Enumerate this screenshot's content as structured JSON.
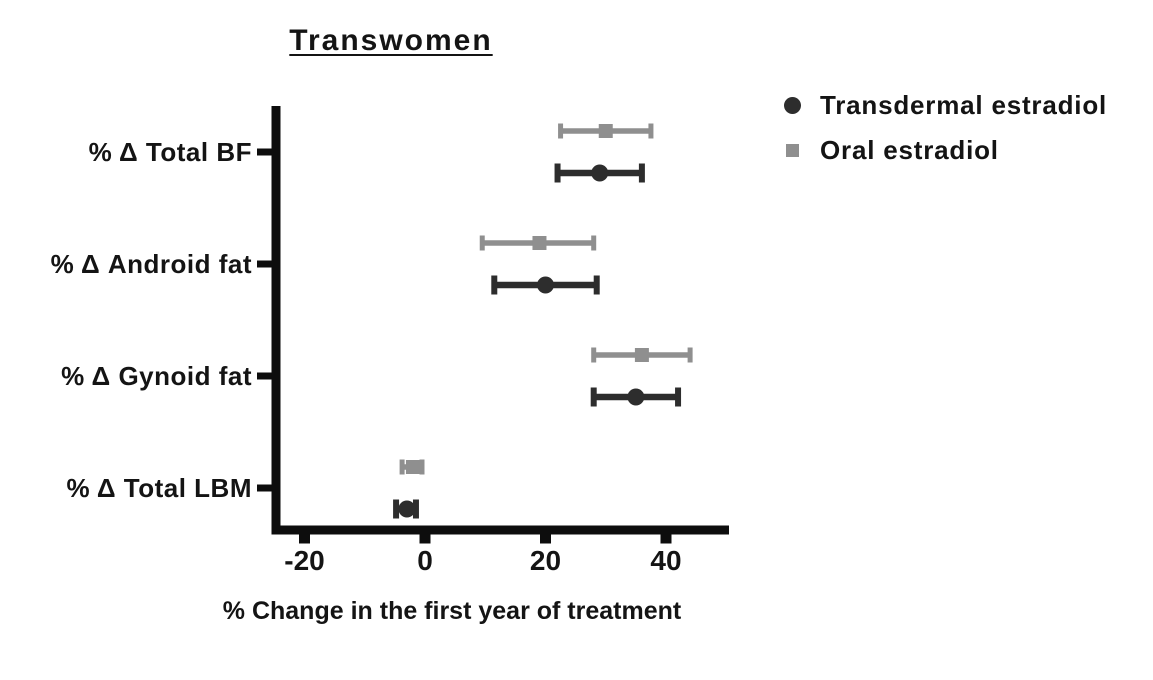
{
  "title": "Transwomen",
  "colors": {
    "axis": "#0d0d0d",
    "text": "#141414",
    "transdermal": "#2d2d2d",
    "oral": "#8f8f8f",
    "background": "#ffffff"
  },
  "legend": {
    "items": [
      {
        "id": "transdermal",
        "label": "Transdermal estradiol",
        "marker": "circle",
        "color": "#2d2d2d"
      },
      {
        "id": "oral",
        "label": "Oral estradiol",
        "marker": "square",
        "color": "#8f8f8f"
      }
    ]
  },
  "chart_data": {
    "type": "scatter",
    "subtype": "horizontal_point_estimates_with_error_bars",
    "title": "Transwomen",
    "categories": [
      "% Δ Total BF",
      "% Δ Android fat",
      "% Δ Gynoid fat",
      "% Δ Total LBM"
    ],
    "series": [
      {
        "name": "Oral estradiol",
        "marker": "square",
        "color": "#8f8f8f",
        "values": [
          30,
          19,
          36,
          -2
        ],
        "ci_low": [
          22.5,
          9.5,
          28,
          -3.8
        ],
        "ci_high": [
          37.5,
          28,
          44,
          -0.5
        ]
      },
      {
        "name": "Transdermal estradiol",
        "marker": "circle",
        "color": "#2d2d2d",
        "values": [
          29,
          20,
          35,
          -3
        ],
        "ci_low": [
          22,
          11.5,
          28,
          -4.8
        ],
        "ci_high": [
          36,
          28.5,
          42,
          -1.5
        ]
      }
    ],
    "xlabel": "% Change in the first year of treatment",
    "x_ticks": [
      -20,
      0,
      20,
      40
    ],
    "x_tick_labels": [
      "-20",
      "0",
      "20",
      "40"
    ],
    "xlim": [
      -25.3,
      50.5
    ],
    "grid": false,
    "legend_position": "top-right"
  }
}
